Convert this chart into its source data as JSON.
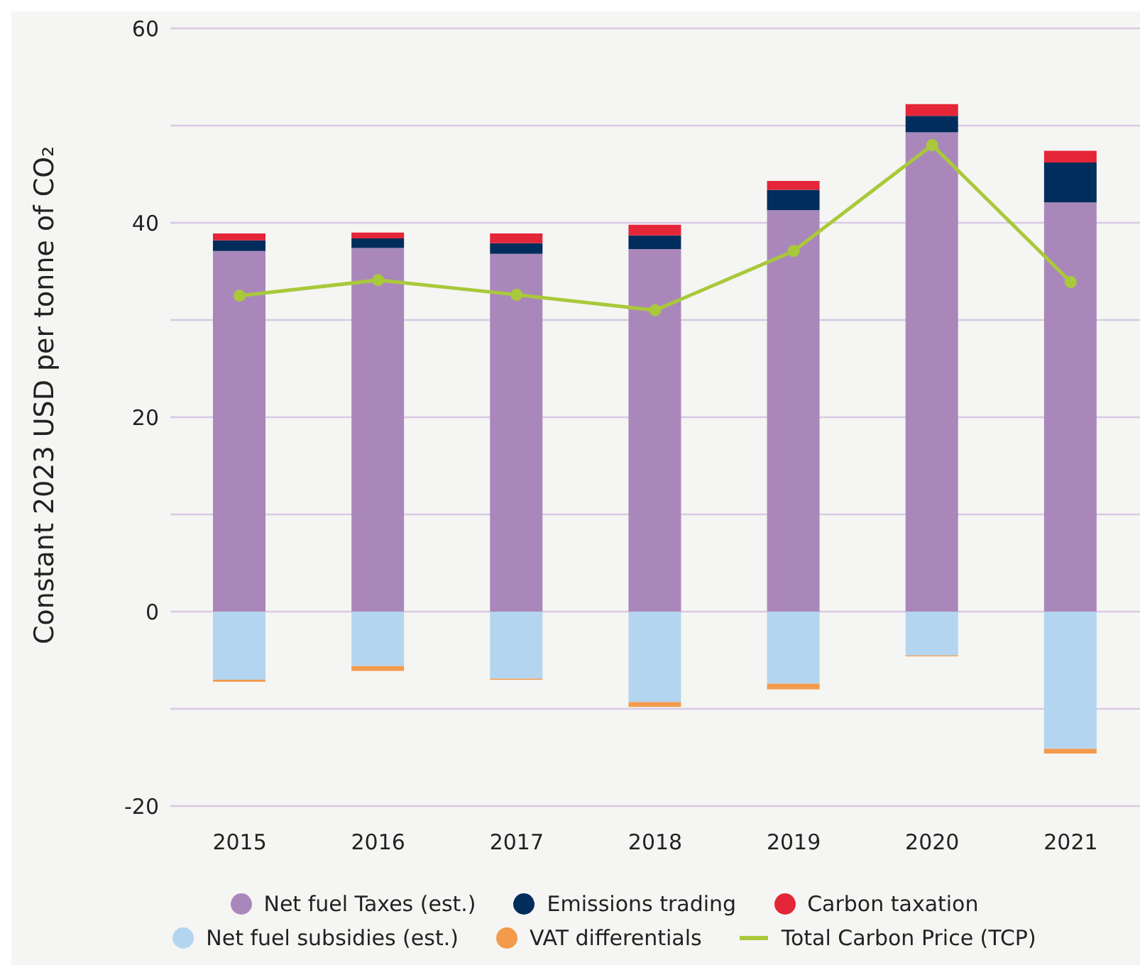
{
  "chart_data": {
    "type": "bar",
    "stacked": true,
    "ylabel": "Constant 2023 USD per tonne of CO₂",
    "categories": [
      "2015",
      "2016",
      "2017",
      "2018",
      "2019",
      "2020",
      "2021"
    ],
    "series": [
      {
        "name": "Net fuel Taxes (est.)",
        "color": "#aa87ba",
        "values": [
          37.1,
          37.4,
          36.8,
          37.3,
          41.3,
          49.3,
          42.1
        ]
      },
      {
        "name": "Emissions trading",
        "color": "#002d5c",
        "values": [
          1.1,
          1.0,
          1.1,
          1.4,
          2.1,
          1.7,
          4.1
        ]
      },
      {
        "name": "Carbon taxation",
        "color": "#e52538",
        "values": [
          0.7,
          0.6,
          1.0,
          1.1,
          0.9,
          1.2,
          1.2
        ]
      },
      {
        "name": "Net fuel subsidies (est.)",
        "color": "#b4d5ef",
        "values": [
          -7.0,
          -5.6,
          -6.9,
          -9.3,
          -7.4,
          -4.5,
          -14.1
        ]
      },
      {
        "name": "VAT differentials",
        "color": "#f39a4b",
        "values": [
          -0.2,
          -0.5,
          -0.1,
          -0.5,
          -0.6,
          -0.1,
          -0.5
        ]
      },
      {
        "name": "Total Carbon Price (TCP)",
        "type": "line",
        "color": "#a9c93a",
        "marker": "circle",
        "values": [
          32.5,
          34.1,
          32.6,
          31.0,
          37.1,
          48.0,
          33.9
        ]
      }
    ],
    "ylim": [
      -20,
      60
    ],
    "yticks": [
      -20,
      {
        "value": -10,
        "label": null
      },
      0,
      {
        "value": 10,
        "label": null
      },
      20,
      {
        "value": 30,
        "label": null
      },
      40,
      {
        "value": 50,
        "label": null
      },
      60
    ],
    "grid": "y",
    "legend": "bottom"
  }
}
